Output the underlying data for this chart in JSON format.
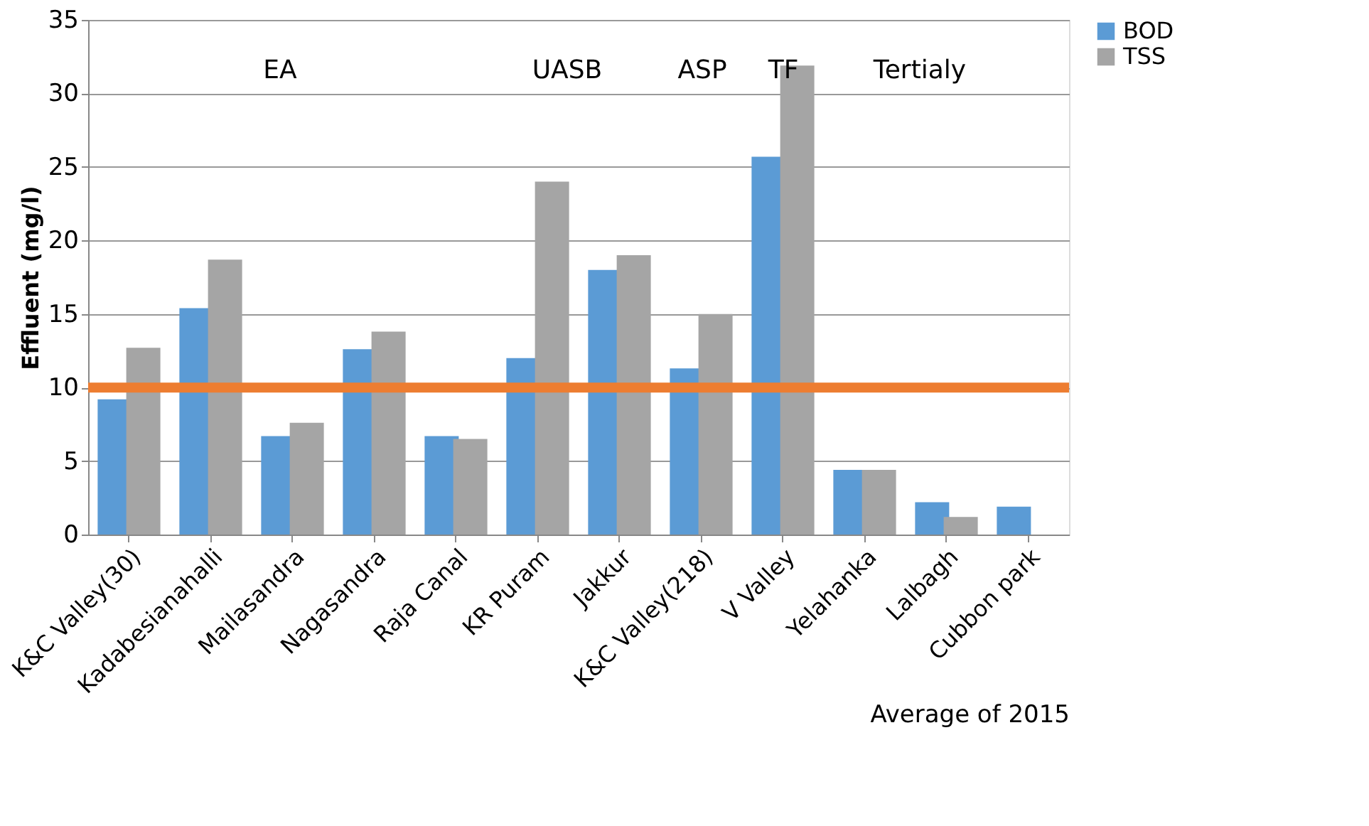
{
  "chart_data": {
    "type": "bar",
    "categories": [
      "K&C Valley(30)",
      "Kadabesianahalli",
      "Mailasandra",
      "Nagasandra",
      "Raja Canal",
      "KR Puram",
      "Jakkur",
      "K&C Valley(218)",
      "V Valley",
      "Yelahanka",
      "Lalbagh",
      "Cubbon park"
    ],
    "series": [
      {
        "name": "BOD",
        "color": "#5b9bd5",
        "values": [
          9.2,
          15.4,
          6.7,
          12.6,
          6.7,
          12.0,
          18.0,
          11.3,
          25.7,
          4.4,
          2.2,
          1.9
        ]
      },
      {
        "name": "TSS",
        "color": "#a5a5a5",
        "values": [
          12.7,
          18.7,
          7.6,
          13.8,
          6.5,
          24.0,
          19.0,
          15.0,
          31.9,
          4.4,
          1.2,
          null
        ]
      }
    ],
    "xlabel": "Average of 2015",
    "ylabel": "Effluent (mg/l)",
    "ylim": [
      0,
      35
    ],
    "yticks": [
      0,
      5,
      10,
      15,
      20,
      25,
      30,
      35
    ],
    "grid": "y",
    "legend": "right",
    "ref_lines": [
      {
        "axis": "y",
        "value": 10,
        "color": "#ed7d31"
      }
    ],
    "annotations": [
      "EA",
      "UASB",
      "ASP",
      "TF",
      "Tertialy"
    ]
  }
}
